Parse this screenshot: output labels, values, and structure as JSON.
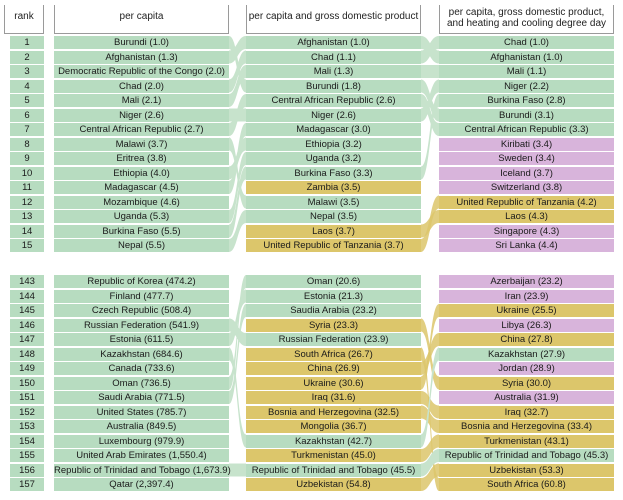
{
  "headers": {
    "rank": "rank",
    "per_capita": "per capita",
    "per_capita_gdp": "per capita and gross domestic product",
    "per_capita_gdp_hdd": "per capita, gross domestic product, and heating and cooling degree day"
  },
  "colors": {
    "green": "#b7dcc0",
    "yellow": "#dcc66b",
    "purple": "#d8b4db",
    "link": "#c7e3cc"
  },
  "top_block": {
    "ranks": [
      "1",
      "2",
      "3",
      "4",
      "5",
      "6",
      "7",
      "8",
      "9",
      "10",
      "11",
      "12",
      "13",
      "14",
      "15"
    ],
    "per_capita": [
      {
        "label": "Burundi (1.0)",
        "country": "Burundi",
        "color": "green"
      },
      {
        "label": "Afghanistan (1.3)",
        "country": "Afghanistan",
        "color": "green"
      },
      {
        "label": "Democratic Republic of the Congo (2.0)",
        "country": "Democratic Republic of the Congo",
        "color": "green"
      },
      {
        "label": "Chad (2.0)",
        "country": "Chad",
        "color": "green"
      },
      {
        "label": "Mali (2.1)",
        "country": "Mali",
        "color": "green"
      },
      {
        "label": "Niger (2.6)",
        "country": "Niger",
        "color": "green"
      },
      {
        "label": "Central African Republic (2.7)",
        "country": "Central African Republic",
        "color": "green"
      },
      {
        "label": "Malawi (3.7)",
        "country": "Malawi",
        "color": "green"
      },
      {
        "label": "Eritrea (3.8)",
        "country": "Eritrea",
        "color": "green"
      },
      {
        "label": "Ethiopia (4.0)",
        "country": "Ethiopia",
        "color": "green"
      },
      {
        "label": "Madagascar (4.5)",
        "country": "Madagascar",
        "color": "green"
      },
      {
        "label": "Mozambique (4.6)",
        "country": "Mozambique",
        "color": "green"
      },
      {
        "label": "Uganda (5.3)",
        "country": "Uganda",
        "color": "green"
      },
      {
        "label": "Burkina Faso (5.5)",
        "country": "Burkina Faso",
        "color": "green"
      },
      {
        "label": "Nepal (5.5)",
        "country": "Nepal",
        "color": "green"
      }
    ],
    "per_capita_gdp": [
      {
        "label": "Afghanistan (1.0)",
        "country": "Afghanistan",
        "color": "green"
      },
      {
        "label": "Chad (1.1)",
        "country": "Chad",
        "color": "green"
      },
      {
        "label": "Mali (1.3)",
        "country": "Mali",
        "color": "green"
      },
      {
        "label": "Burundi (1.8)",
        "country": "Burundi",
        "color": "green"
      },
      {
        "label": "Central African Republic (2.6)",
        "country": "Central African Republic",
        "color": "green"
      },
      {
        "label": "Niger (2.6)",
        "country": "Niger",
        "color": "green"
      },
      {
        "label": "Madagascar (3.0)",
        "country": "Madagascar",
        "color": "green"
      },
      {
        "label": "Ethiopia (3.2)",
        "country": "Ethiopia",
        "color": "green"
      },
      {
        "label": "Uganda (3.2)",
        "country": "Uganda",
        "color": "green"
      },
      {
        "label": "Burkina Faso (3.3)",
        "country": "Burkina Faso",
        "color": "green"
      },
      {
        "label": "Zambia (3.5)",
        "country": "Zambia",
        "color": "yellow"
      },
      {
        "label": "Malawi (3.5)",
        "country": "Malawi",
        "color": "green"
      },
      {
        "label": "Nepal (3.5)",
        "country": "Nepal",
        "color": "green"
      },
      {
        "label": "Laos (3.7)",
        "country": "Laos",
        "color": "yellow"
      },
      {
        "label": "United Republic of Tanzania (3.7)",
        "country": "United Republic of Tanzania",
        "color": "yellow"
      }
    ],
    "per_capita_gdp_hdd": [
      {
        "label": "Chad (1.0)",
        "country": "Chad",
        "color": "green"
      },
      {
        "label": "Afghanistan (1.0)",
        "country": "Afghanistan",
        "color": "green"
      },
      {
        "label": "Mali (1.1)",
        "country": "Mali",
        "color": "green"
      },
      {
        "label": "Niger (2.2)",
        "country": "Niger",
        "color": "green"
      },
      {
        "label": "Burkina Faso (2.8)",
        "country": "Burkina Faso",
        "color": "green"
      },
      {
        "label": "Burundi (3.1)",
        "country": "Burundi",
        "color": "green"
      },
      {
        "label": "Central African Republic (3.3)",
        "country": "Central African Republic",
        "color": "green"
      },
      {
        "label": "Kiribati (3.4)",
        "country": "Kiribati",
        "color": "purple"
      },
      {
        "label": "Sweden (3.4)",
        "country": "Sweden",
        "color": "purple"
      },
      {
        "label": "Iceland (3.7)",
        "country": "Iceland",
        "color": "purple"
      },
      {
        "label": "Switzerland (3.8)",
        "country": "Switzerland",
        "color": "purple"
      },
      {
        "label": "United Republic of Tanzania (4.2)",
        "country": "United Republic of Tanzania",
        "color": "yellow"
      },
      {
        "label": "Laos (4.3)",
        "country": "Laos",
        "color": "yellow"
      },
      {
        "label": "Singapore (4.3)",
        "country": "Singapore",
        "color": "purple"
      },
      {
        "label": "Sri Lanka (4.4)",
        "country": "Sri Lanka",
        "color": "purple"
      }
    ]
  },
  "bottom_block": {
    "ranks": [
      "143",
      "144",
      "145",
      "146",
      "147",
      "148",
      "149",
      "150",
      "151",
      "152",
      "153",
      "154",
      "155",
      "156",
      "157"
    ],
    "per_capita": [
      {
        "label": "Republic of Korea (474.2)",
        "country": "Republic of Korea",
        "color": "green"
      },
      {
        "label": "Finland (477.7)",
        "country": "Finland",
        "color": "green"
      },
      {
        "label": "Czech Republic (508.4)",
        "country": "Czech Republic",
        "color": "green"
      },
      {
        "label": "Russian Federation (541.9)",
        "country": "Russian Federation",
        "color": "green"
      },
      {
        "label": "Estonia (611.5)",
        "country": "Estonia",
        "color": "green"
      },
      {
        "label": "Kazakhstan (684.6)",
        "country": "Kazakhstan",
        "color": "green"
      },
      {
        "label": "Canada (733.6)",
        "country": "Canada",
        "color": "green"
      },
      {
        "label": "Oman (736.5)",
        "country": "Oman",
        "color": "green"
      },
      {
        "label": "Saudi Arabia (771.5)",
        "country": "Saudi Arabia",
        "color": "green"
      },
      {
        "label": "United States (785.7)",
        "country": "United States",
        "color": "green"
      },
      {
        "label": "Australia (849.5)",
        "country": "Australia",
        "color": "green"
      },
      {
        "label": "Luxembourg (979.9)",
        "country": "Luxembourg",
        "color": "green"
      },
      {
        "label": "United Arab Emirates (1,550.4)",
        "country": "United Arab Emirates",
        "color": "green"
      },
      {
        "label": "Republic of Trinidad and Tobago (1,673.9)",
        "country": "Republic of Trinidad and Tobago",
        "color": "green"
      },
      {
        "label": "Qatar (2,397.4)",
        "country": "Qatar",
        "color": "green"
      }
    ],
    "per_capita_gdp": [
      {
        "label": "Oman (20.6)",
        "country": "Oman",
        "color": "green"
      },
      {
        "label": "Estonia (21.3)",
        "country": "Estonia",
        "color": "green"
      },
      {
        "label": "Saudia Arabia (23.2)",
        "country": "Saudi Arabia",
        "color": "green"
      },
      {
        "label": "Syria (23.3)",
        "country": "Syria",
        "color": "yellow"
      },
      {
        "label": "Russian Federation (23.9)",
        "country": "Russian Federation",
        "color": "green"
      },
      {
        "label": "South Africa (26.7)",
        "country": "South Africa",
        "color": "yellow"
      },
      {
        "label": "China (26.9)",
        "country": "China",
        "color": "yellow"
      },
      {
        "label": "Ukraine (30.6)",
        "country": "Ukraine",
        "color": "yellow"
      },
      {
        "label": "Iraq (31.6)",
        "country": "Iraq",
        "color": "yellow"
      },
      {
        "label": "Bosnia and Herzegovina (32.5)",
        "country": "Bosnia and Herzegovina",
        "color": "yellow"
      },
      {
        "label": "Mongolia (36.7)",
        "country": "Mongolia",
        "color": "yellow"
      },
      {
        "label": "Kazakhstan (42.7)",
        "country": "Kazakhstan",
        "color": "green"
      },
      {
        "label": "Turkmenistan (45.0)",
        "country": "Turkmenistan",
        "color": "yellow"
      },
      {
        "label": "Republic of Trinidad and Tobago (45.5)",
        "country": "Republic of Trinidad and Tobago",
        "color": "green"
      },
      {
        "label": "Uzbekistan (54.8)",
        "country": "Uzbekistan",
        "color": "yellow"
      }
    ],
    "per_capita_gdp_hdd": [
      {
        "label": "Azerbaijan (23.2)",
        "country": "Azerbaijan",
        "color": "purple"
      },
      {
        "label": "Iran (23.9)",
        "country": "Iran",
        "color": "purple"
      },
      {
        "label": "Ukraine (25.5)",
        "country": "Ukraine",
        "color": "yellow"
      },
      {
        "label": "Libya (26.3)",
        "country": "Libya",
        "color": "purple"
      },
      {
        "label": "China (27.8)",
        "country": "China",
        "color": "yellow"
      },
      {
        "label": "Kazakhstan (27.9)",
        "country": "Kazakhstan",
        "color": "green"
      },
      {
        "label": "Jordan (28.9)",
        "country": "Jordan",
        "color": "purple"
      },
      {
        "label": "Syria (30.0)",
        "country": "Syria",
        "color": "yellow"
      },
      {
        "label": "Australia (31.9)",
        "country": "Australia",
        "color": "purple"
      },
      {
        "label": "Iraq (32.7)",
        "country": "Iraq",
        "color": "yellow"
      },
      {
        "label": "Bosnia and Herzegovina (33.4)",
        "country": "Bosnia and Herzegovina",
        "color": "yellow"
      },
      {
        "label": "Turkmenistan (43.1)",
        "country": "Turkmenistan",
        "color": "yellow"
      },
      {
        "label": "Republic of Trinidad and Tobago (45.3)",
        "country": "Republic of Trinidad and Tobago",
        "color": "green"
      },
      {
        "label": "Uzbekistan (53.3)",
        "country": "Uzbekistan",
        "color": "yellow"
      },
      {
        "label": "South Africa (60.8)",
        "country": "South Africa",
        "color": "yellow"
      }
    ]
  }
}
